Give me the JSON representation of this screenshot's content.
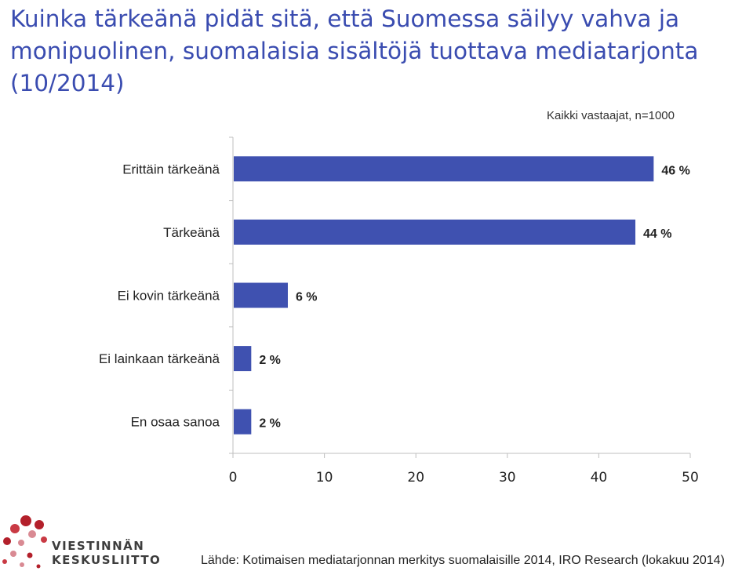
{
  "title": "Kuinka tärkeänä pidät sitä, että Suomessa säilyy vahva ja monipuolinen, suomalaisia sisältöjä tuottava mediatarjonta (10/2014)",
  "subtitle": "Kaikki vastaajat, n=1000",
  "source": "Lähde: Kotimaisen mediatarjonnan merkitys suomalaisille 2014, IRO Research (lokakuu 2014)",
  "logo": {
    "line1": "VIESTINNÄN",
    "line2": "KESKUSLIITTO",
    "colors": [
      "#b3202b",
      "#d98a93"
    ]
  },
  "colors": {
    "title": "#3a4cb0",
    "bar": "#3f51b0",
    "axis": "#bfbfbf"
  },
  "chart_data": {
    "type": "bar",
    "orientation": "horizontal",
    "categories": [
      "Erittäin tärkeänä",
      "Tärkeänä",
      "Ei kovin tärkeänä",
      "Ei lainkaan tärkeänä",
      "En osaa sanoa"
    ],
    "values": [
      46,
      44,
      6,
      2,
      2
    ],
    "value_labels": [
      "46 %",
      "44 %",
      "6 %",
      "2 %",
      "2 %"
    ],
    "xlim": [
      0,
      50
    ],
    "xticks": [
      0,
      10,
      20,
      30,
      40,
      50
    ],
    "grid": false,
    "legend": "none"
  }
}
